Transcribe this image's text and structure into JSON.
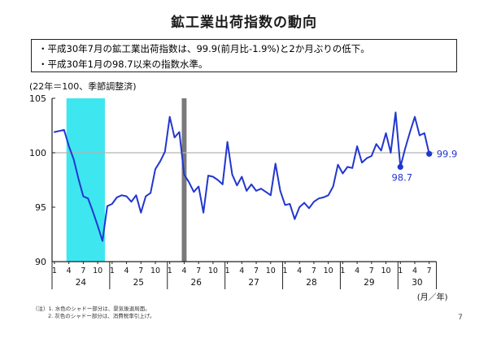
{
  "page": {
    "title": "鉱工業出荷指数の動向",
    "page_number": "7"
  },
  "summary_box": {
    "bullets": [
      "・平成30年7月の鉱工業出荷指数は、99.9(前月比-1.9%)と2か月ぶりの低下。",
      "・平成30年1月の98.7以来の指数水準。"
    ]
  },
  "notes": {
    "line1": "（注）1. 水色のシャドー部分は、景気後退局面。",
    "line2": "2. 灰色のシャドー部分は、消費税率引上げ。"
  },
  "chart_data": {
    "type": "line",
    "title": "鉱工業出荷指数の動向",
    "unit_note": "(22年＝100、季節調整済)",
    "x_axis_unit": "(月／年)",
    "ylim": [
      90,
      105
    ],
    "yticks": [
      105,
      100,
      95,
      90
    ],
    "gridline_at": 100,
    "grid": "horizontal-100-only",
    "legend_position": "none",
    "series_name": "鉱工業出荷指数",
    "start_month": "平成24年1月",
    "end_month": "平成30年7月",
    "years": [
      {
        "label": "24",
        "months": [
          1,
          4,
          7,
          10
        ]
      },
      {
        "label": "25",
        "months": [
          1,
          4,
          7,
          10
        ]
      },
      {
        "label": "26",
        "months": [
          1,
          4,
          7,
          10
        ]
      },
      {
        "label": "27",
        "months": [
          1,
          4,
          7,
          10
        ]
      },
      {
        "label": "28",
        "months": [
          1,
          4,
          7,
          10
        ]
      },
      {
        "label": "29",
        "months": [
          1,
          4,
          7,
          10
        ]
      },
      {
        "label": "30",
        "months": [
          1,
          4,
          7
        ]
      }
    ],
    "values": [
      101.9,
      102.0,
      102.1,
      100.6,
      99.4,
      97.6,
      96.0,
      95.8,
      94.6,
      93.3,
      91.9,
      95.1,
      95.3,
      95.9,
      96.1,
      96.0,
      95.5,
      96.1,
      94.5,
      96.0,
      96.3,
      98.5,
      99.2,
      100.1,
      103.3,
      101.4,
      101.9,
      98.0,
      97.3,
      96.4,
      96.9,
      94.5,
      97.9,
      97.8,
      97.5,
      97.1,
      101.0,
      98.0,
      97.0,
      97.8,
      96.5,
      97.1,
      96.5,
      96.7,
      96.4,
      96.1,
      99.0,
      96.5,
      95.2,
      95.3,
      93.9,
      95.0,
      95.4,
      94.9,
      95.5,
      95.8,
      95.9,
      96.1,
      96.9,
      98.9,
      98.1,
      98.7,
      98.6,
      100.6,
      99.1,
      99.5,
      99.7,
      100.8,
      100.2,
      101.8,
      100.0,
      103.7,
      98.7,
      100.4,
      101.9,
      103.3,
      101.6,
      101.8,
      99.9
    ],
    "line_color": "#2236cf",
    "gridline_color": "#b3b3b3",
    "axis_color": "#222222",
    "bands": [
      {
        "name": "recession-shading",
        "from_index": 3,
        "to_index": 10,
        "color": "#3ee6f0"
      },
      {
        "name": "tax-hike-shading",
        "from_index": 27,
        "to_index": 27,
        "color": "#7a7a7a"
      }
    ],
    "annotations": [
      {
        "index": 72,
        "text": "98.7",
        "position": "below"
      },
      {
        "index": 78,
        "text": "99.9",
        "position": "right"
      }
    ]
  }
}
